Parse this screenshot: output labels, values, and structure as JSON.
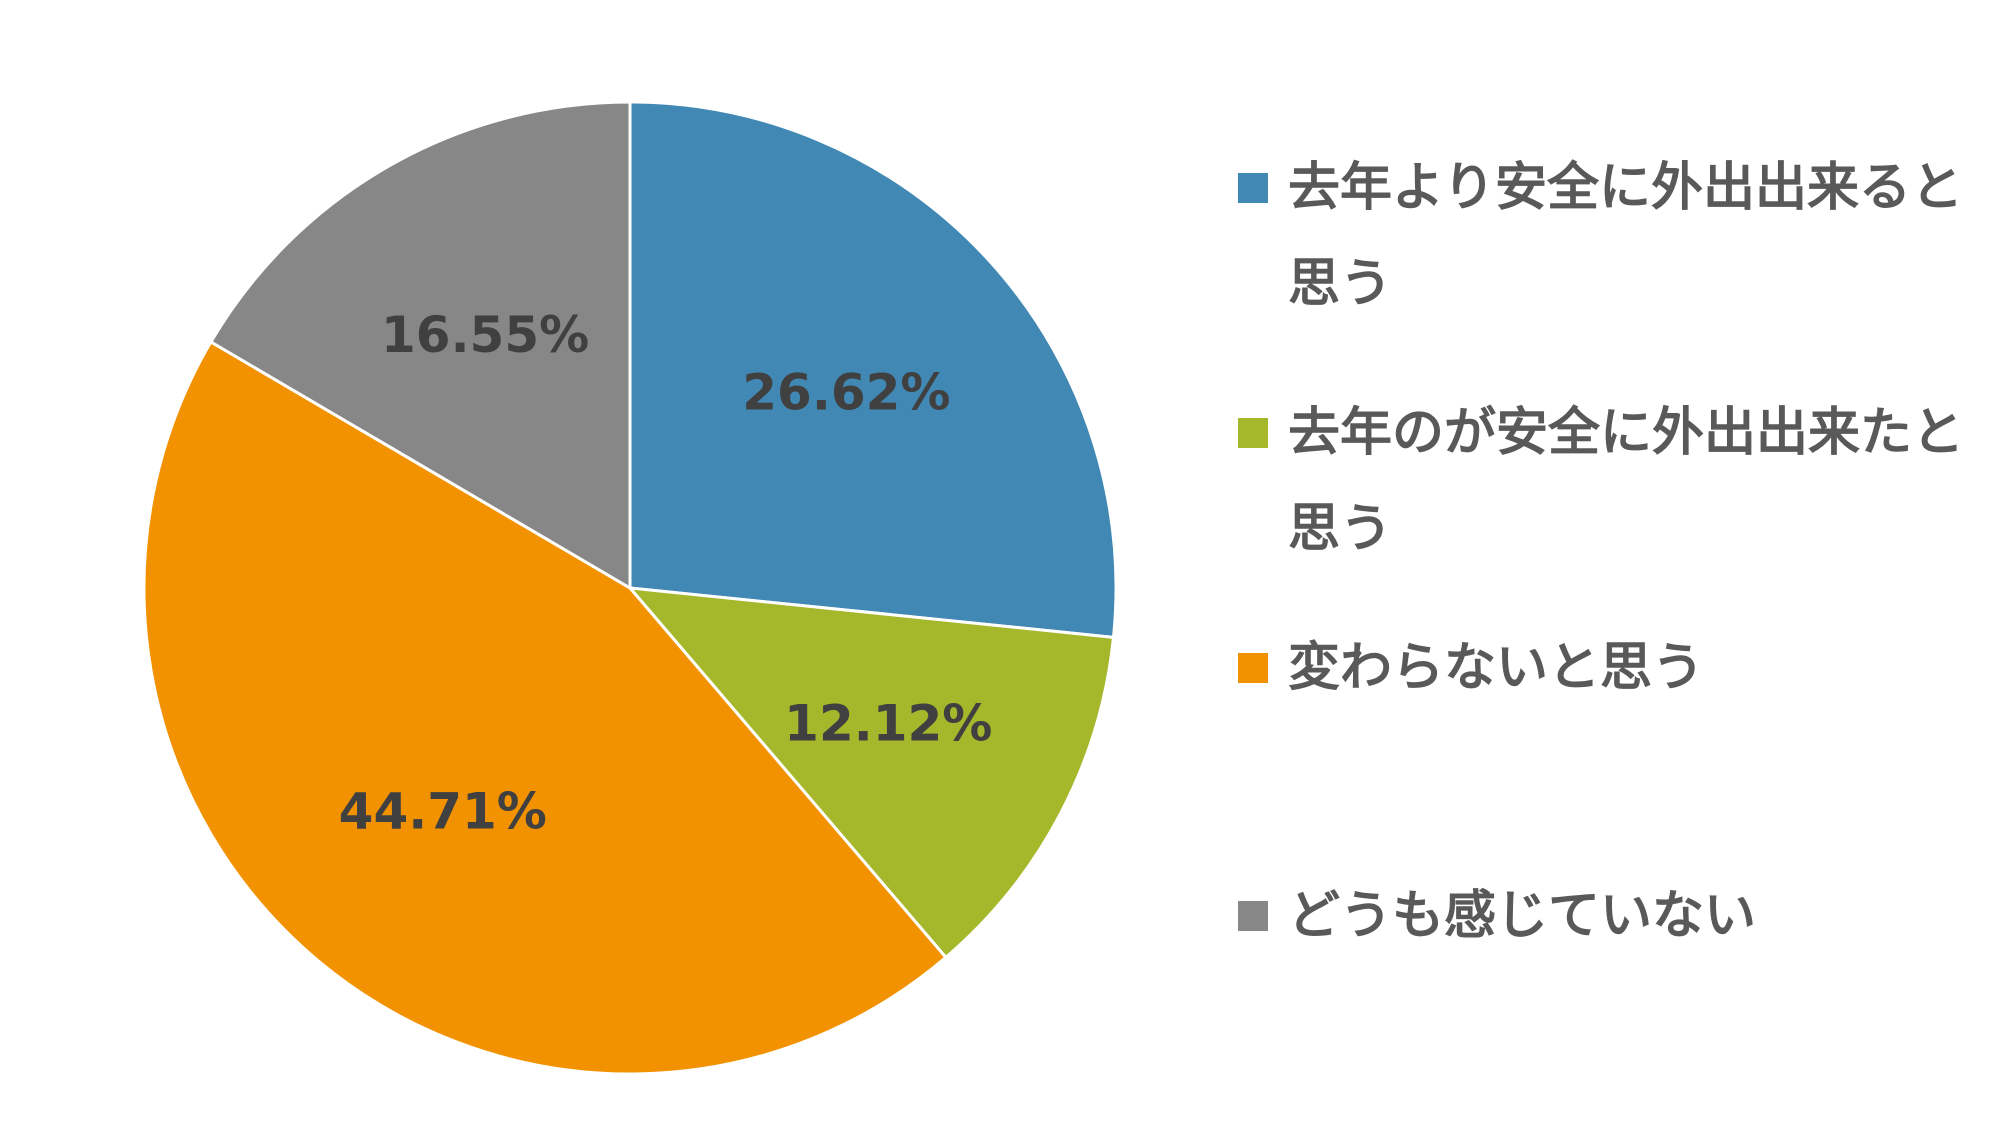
{
  "chart_data": {
    "type": "pie",
    "categories": [
      "去年より安全に外出出来ると思う",
      "去年のが安全に外出出来たと思う",
      "変わらないと思う",
      "どうも感じていない"
    ],
    "values": [
      26.62,
      12.12,
      44.71,
      16.55
    ],
    "value_labels": [
      "26.62%",
      "12.12%",
      "44.71%",
      "16.55%"
    ],
    "colors": [
      "#4189B4",
      "#A5B72A",
      "#F39200",
      "#878787"
    ],
    "legend_position": "right",
    "start_angle": "12 o'clock",
    "direction": "clockwise"
  }
}
